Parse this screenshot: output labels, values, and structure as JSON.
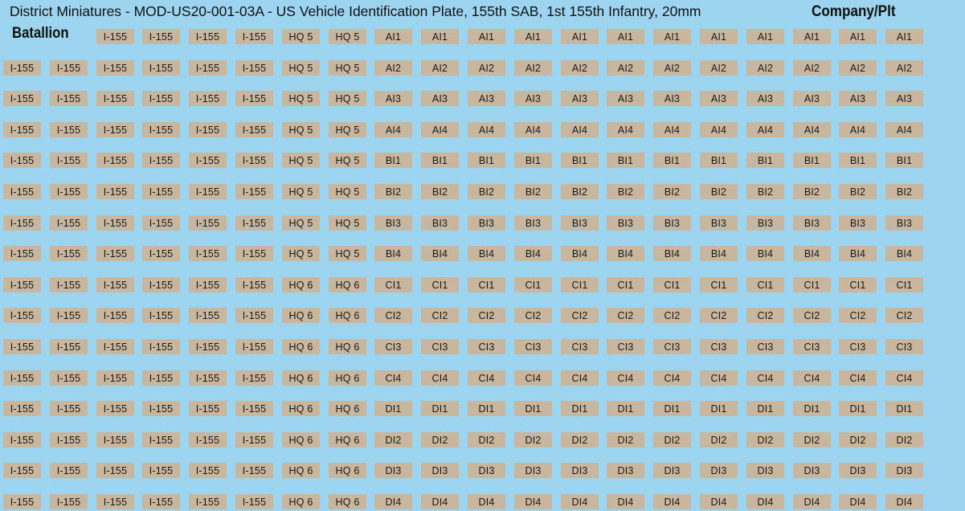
{
  "sheet": {
    "title": "District Miniatures - MOD-US20-001-03A - US Vehicle Identification Plate, 155th SAB, 1st 155th Infantry, 20mm",
    "batallion_heading": "Batallion",
    "company_heading": "Company/Plt",
    "plate_color": "#c8b69e",
    "background_color": "#9dd4ef"
  },
  "rows": [
    [
      "I-155",
      "I-155",
      "I-155",
      "I-155",
      "HQ 5",
      "HQ 5",
      "AI1",
      "AI1",
      "AI1",
      "AI1",
      "AI1",
      "AI1",
      "AI1",
      "AI1",
      "AI1",
      "AI1",
      "AI1",
      "AI1"
    ],
    [
      "I-155",
      "I-155",
      "I-155",
      "I-155",
      "I-155",
      "I-155",
      "HQ 5",
      "HQ 5",
      "AI2",
      "AI2",
      "AI2",
      "AI2",
      "AI2",
      "AI2",
      "AI2",
      "AI2",
      "AI2",
      "AI2",
      "AI2",
      "AI2"
    ],
    [
      "I-155",
      "I-155",
      "I-155",
      "I-155",
      "I-155",
      "I-155",
      "HQ 5",
      "HQ 5",
      "AI3",
      "AI3",
      "AI3",
      "AI3",
      "AI3",
      "AI3",
      "AI3",
      "AI3",
      "AI3",
      "AI3",
      "AI3",
      "AI3"
    ],
    [
      "I-155",
      "I-155",
      "I-155",
      "I-155",
      "I-155",
      "I-155",
      "HQ 5",
      "HQ 5",
      "AI4",
      "AI4",
      "AI4",
      "AI4",
      "AI4",
      "AI4",
      "AI4",
      "AI4",
      "AI4",
      "AI4",
      "AI4",
      "AI4"
    ],
    [
      "I-155",
      "I-155",
      "I-155",
      "I-155",
      "I-155",
      "I-155",
      "HQ 5",
      "HQ 5",
      "BI1",
      "BI1",
      "BI1",
      "BI1",
      "BI1",
      "BI1",
      "BI1",
      "BI1",
      "BI1",
      "BI1",
      "BI1",
      "BI1"
    ],
    [
      "I-155",
      "I-155",
      "I-155",
      "I-155",
      "I-155",
      "I-155",
      "HQ 5",
      "HQ 5",
      "BI2",
      "BI2",
      "BI2",
      "BI2",
      "BI2",
      "BI2",
      "BI2",
      "BI2",
      "BI2",
      "BI2",
      "BI2",
      "BI2"
    ],
    [
      "I-155",
      "I-155",
      "I-155",
      "I-155",
      "I-155",
      "I-155",
      "HQ 5",
      "HQ 5",
      "BI3",
      "BI3",
      "BI3",
      "BI3",
      "BI3",
      "BI3",
      "BI3",
      "BI3",
      "BI3",
      "BI3",
      "BI3",
      "BI3"
    ],
    [
      "I-155",
      "I-155",
      "I-155",
      "I-155",
      "I-155",
      "I-155",
      "HQ 5",
      "HQ 5",
      "BI4",
      "BI4",
      "BI4",
      "BI4",
      "BI4",
      "BI4",
      "BI4",
      "BI4",
      "BI4",
      "BI4",
      "BI4",
      "BI4"
    ],
    [
      "I-155",
      "I-155",
      "I-155",
      "I-155",
      "I-155",
      "I-155",
      "HQ 6",
      "HQ 6",
      "CI1",
      "CI1",
      "CI1",
      "CI1",
      "CI1",
      "CI1",
      "CI1",
      "CI1",
      "CI1",
      "CI1",
      "CI1",
      "CI1"
    ],
    [
      "I-155",
      "I-155",
      "I-155",
      "I-155",
      "I-155",
      "I-155",
      "HQ 6",
      "HQ 6",
      "CI2",
      "CI2",
      "CI2",
      "CI2",
      "CI2",
      "CI2",
      "CI2",
      "CI2",
      "CI2",
      "CI2",
      "CI2",
      "CI2"
    ],
    [
      "I-155",
      "I-155",
      "I-155",
      "I-155",
      "I-155",
      "I-155",
      "HQ 6",
      "HQ 6",
      "CI3",
      "CI3",
      "CI3",
      "CI3",
      "CI3",
      "CI3",
      "CI3",
      "CI3",
      "CI3",
      "CI3",
      "CI3",
      "CI3"
    ],
    [
      "I-155",
      "I-155",
      "I-155",
      "I-155",
      "I-155",
      "I-155",
      "HQ 6",
      "HQ 6",
      "CI4",
      "CI4",
      "CI4",
      "CI4",
      "CI4",
      "CI4",
      "CI4",
      "CI4",
      "CI4",
      "CI4",
      "CI4",
      "CI4"
    ],
    [
      "I-155",
      "I-155",
      "I-155",
      "I-155",
      "I-155",
      "I-155",
      "HQ 6",
      "HQ 6",
      "DI1",
      "DI1",
      "DI1",
      "DI1",
      "DI1",
      "DI1",
      "DI1",
      "DI1",
      "DI1",
      "DI1",
      "DI1",
      "DI1"
    ],
    [
      "I-155",
      "I-155",
      "I-155",
      "I-155",
      "I-155",
      "I-155",
      "HQ 6",
      "HQ 6",
      "DI2",
      "DI2",
      "DI2",
      "DI2",
      "DI2",
      "DI2",
      "DI2",
      "DI2",
      "DI2",
      "DI2",
      "DI2",
      "DI2"
    ],
    [
      "I-155",
      "I-155",
      "I-155",
      "I-155",
      "I-155",
      "I-155",
      "HQ 6",
      "HQ 6",
      "DI3",
      "DI3",
      "DI3",
      "DI3",
      "DI3",
      "DI3",
      "DI3",
      "DI3",
      "DI3",
      "DI3",
      "DI3",
      "DI3"
    ],
    [
      "I-155",
      "I-155",
      "I-155",
      "I-155",
      "I-155",
      "I-155",
      "HQ 6",
      "HQ 6",
      "DI4",
      "DI4",
      "DI4",
      "DI4",
      "DI4",
      "DI4",
      "DI4",
      "DI4",
      "DI4",
      "DI4",
      "DI4",
      "DI4"
    ]
  ]
}
